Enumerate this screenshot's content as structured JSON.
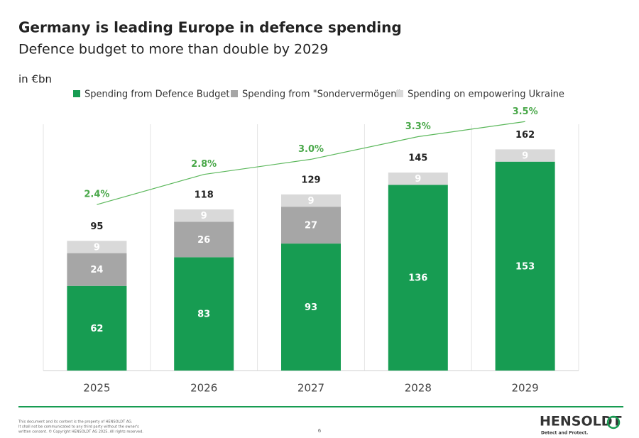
{
  "chart_data": {
    "type": "stacked-bar",
    "title": "Germany is leading Europe in defence spending",
    "subtitle": "Defence budget to more than double by 2029",
    "unit_label": "in €bn",
    "categories": [
      "2025",
      "2026",
      "2027",
      "2028",
      "2029"
    ],
    "series": [
      {
        "name": "Spending from Defence Budget",
        "color": "#179c52",
        "values": [
          62,
          83,
          93,
          136,
          153
        ]
      },
      {
        "name": "Spending from \"Sondervermögen\"",
        "color": "#a6a6a6",
        "values": [
          24,
          26,
          27,
          null,
          null
        ]
      },
      {
        "name": "Spending on empowering Ukraine",
        "color": "#d9d9d9",
        "values": [
          9,
          9,
          9,
          9,
          9
        ]
      }
    ],
    "totals": [
      95,
      118,
      129,
      145,
      162
    ],
    "ylim": [
      0,
      183
    ],
    "gdp_share": {
      "type": "line",
      "color": "#5cb85c",
      "values": [
        2.4,
        2.8,
        3.0,
        3.3,
        3.5
      ],
      "value_labels": [
        "2.4%",
        "2.8%",
        "3.0%",
        "3.3%",
        "3.5%"
      ],
      "y2lim": [
        0.2,
        3.7
      ]
    }
  },
  "footer": {
    "disclaimer": [
      "This document and its content is the property of HENSOLDT AG.",
      "It shall not be communicated to any third party without the owner's",
      "written consent. © Copyright HENSOLDT AG 2025. All rights reserved."
    ],
    "page": "6",
    "logo": "HENSOLDT",
    "tagline": "Detect and Protect."
  }
}
